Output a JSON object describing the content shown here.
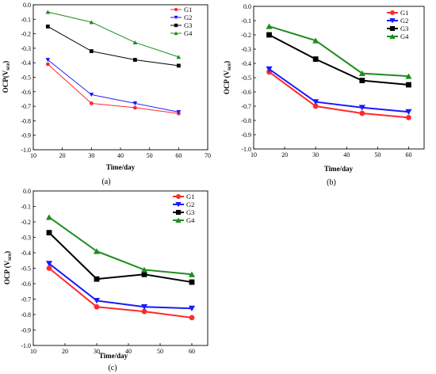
{
  "colors": {
    "G1": "#ff2a2a",
    "G2": "#1a1aff",
    "G3": "#000000",
    "G4": "#1e8c1e"
  },
  "markers": {
    "G1": "circle",
    "G2": "triangle-down",
    "G3": "square",
    "G4": "triangle-up"
  },
  "chart_data": [
    {
      "type": "line",
      "panel_label": "(a)",
      "xlabel": "Time/day",
      "ylabel_main": "OCP(V",
      "ylabel_sub": "sce",
      "ylabel_close": ")",
      "xlim": [
        10,
        70
      ],
      "ylim": [
        -1.0,
        0.0
      ],
      "xticks": [
        "10",
        "20",
        "30",
        "40",
        "50",
        "60",
        "70"
      ],
      "yticks": [
        "0.0",
        "-0.1",
        "-0.2",
        "-0.3",
        "-0.4",
        "-0.5",
        "-0.6",
        "-0.7",
        "-0.8",
        "-0.9",
        "-1.0"
      ],
      "legend_position": "top-right",
      "x": [
        15,
        30,
        45,
        60
      ],
      "series": [
        {
          "name": "G1",
          "values": [
            -0.41,
            -0.68,
            -0.71,
            -0.75
          ]
        },
        {
          "name": "G2",
          "values": [
            -0.38,
            -0.62,
            -0.68,
            -0.74
          ]
        },
        {
          "name": "G3",
          "values": [
            -0.15,
            -0.32,
            -0.38,
            -0.42
          ]
        },
        {
          "name": "G4",
          "values": [
            -0.05,
            -0.12,
            -0.26,
            -0.36
          ]
        }
      ]
    },
    {
      "type": "line",
      "panel_label": "(b)",
      "xlabel": "Time/day",
      "ylabel_main": "OCP (V",
      "ylabel_sub": "sce",
      "ylabel_close": ")",
      "xlim": [
        10,
        65
      ],
      "ylim": [
        -1.0,
        0.0
      ],
      "xticks": [
        "10",
        "20",
        "30",
        "40",
        "50",
        "60"
      ],
      "yticks": [
        "0.0",
        "-0.1",
        "-0.2",
        "-0.3",
        "-0.4",
        "-0.5",
        "-0.6",
        "-0.7",
        "-0.8",
        "-0.9",
        "-1.0"
      ],
      "legend_position": "top-right",
      "x": [
        15,
        30,
        45,
        60
      ],
      "series": [
        {
          "name": "G1",
          "values": [
            -0.46,
            -0.7,
            -0.75,
            -0.78
          ]
        },
        {
          "name": "G2",
          "values": [
            -0.44,
            -0.67,
            -0.71,
            -0.74
          ]
        },
        {
          "name": "G3",
          "values": [
            -0.2,
            -0.37,
            -0.52,
            -0.55
          ]
        },
        {
          "name": "G4",
          "values": [
            -0.14,
            -0.24,
            -0.47,
            -0.49
          ]
        }
      ]
    },
    {
      "type": "line",
      "panel_label": "(c)",
      "xlabel": "Time/day",
      "ylabel_main": "OCP (V",
      "ylabel_sub": "sce",
      "ylabel_close": ")",
      "xlim": [
        10,
        65
      ],
      "ylim": [
        -1.0,
        0.0
      ],
      "xticks": [
        "10",
        "20",
        "30",
        "40",
        "50",
        "60"
      ],
      "yticks": [
        "0.0",
        "-0.1",
        "-0.2",
        "-0.3",
        "-0.4",
        "-0.5",
        "-0.6",
        "-0.7",
        "-0.8",
        "-0.9",
        "-1.0"
      ],
      "legend_position": "top-right",
      "x": [
        15,
        30,
        45,
        60
      ],
      "series": [
        {
          "name": "G1",
          "values": [
            -0.5,
            -0.75,
            -0.78,
            -0.82
          ]
        },
        {
          "name": "G2",
          "values": [
            -0.47,
            -0.71,
            -0.75,
            -0.76
          ]
        },
        {
          "name": "G3",
          "values": [
            -0.27,
            -0.57,
            -0.54,
            -0.59
          ]
        },
        {
          "name": "G4",
          "values": [
            -0.17,
            -0.39,
            -0.51,
            -0.54
          ]
        }
      ]
    }
  ]
}
